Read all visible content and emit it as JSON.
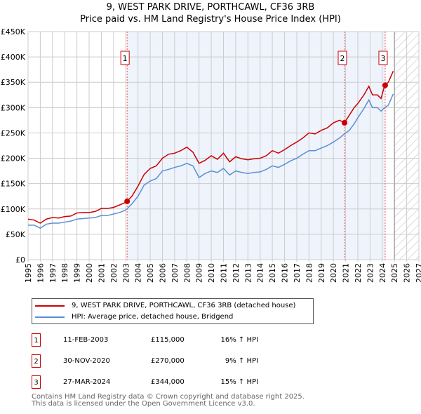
{
  "title": "9, WEST PARK DRIVE, PORTHCAWL, CF36 3RB",
  "subtitle": "Price paid vs. HM Land Registry's House Price Index (HPI)",
  "chart_data": {
    "type": "line",
    "title": "9, WEST PARK DRIVE, PORTHCAWL, CF36 3RB — Price paid vs. HM Land Registry's House Price Index (HPI)",
    "xlim": [
      1995,
      2027
    ],
    "ylim": [
      0,
      450000
    ],
    "x_ticks": [
      "1995",
      "1996",
      "1997",
      "1998",
      "1999",
      "2000",
      "2001",
      "2002",
      "2003",
      "2004",
      "2005",
      "2006",
      "2007",
      "2008",
      "2009",
      "2010",
      "2011",
      "2012",
      "2013",
      "2014",
      "2015",
      "2016",
      "2017",
      "2018",
      "2019",
      "2020",
      "2021",
      "2022",
      "2023",
      "2024",
      "2025",
      "2026",
      "2027"
    ],
    "y_ticks": [
      {
        "v": 0,
        "label": "£0"
      },
      {
        "v": 50000,
        "label": "£50K"
      },
      {
        "v": 100000,
        "label": "£100K"
      },
      {
        "v": 150000,
        "label": "£150K"
      },
      {
        "v": 200000,
        "label": "£200K"
      },
      {
        "v": 250000,
        "label": "£250K"
      },
      {
        "v": 300000,
        "label": "£300K"
      },
      {
        "v": 350000,
        "label": "£350K"
      },
      {
        "v": 400000,
        "label": "£400K"
      },
      {
        "v": 450000,
        "label": "£450K"
      }
    ],
    "grid": true,
    "shaded_range": [
      2003.11,
      2024.24
    ],
    "forecast_hatch_from": 2025.0,
    "x": [
      1995,
      1995.5,
      1996,
      1996.5,
      1997,
      1997.5,
      1998,
      1998.5,
      1999,
      1999.5,
      2000,
      2000.5,
      2001,
      2001.5,
      2002,
      2002.5,
      2003,
      2003.5,
      2004,
      2004.5,
      2005,
      2005.5,
      2006,
      2006.5,
      2007,
      2007.5,
      2008,
      2008.5,
      2009,
      2009.5,
      2010,
      2010.5,
      2011,
      2011.5,
      2012,
      2012.5,
      2013,
      2013.5,
      2014,
      2014.5,
      2015,
      2015.5,
      2016,
      2016.5,
      2017,
      2017.5,
      2018,
      2018.5,
      2019,
      2019.5,
      2020,
      2020.5,
      2020.9,
      2021.3,
      2021.7,
      2022,
      2022.5,
      2022.9,
      2023.2,
      2023.6,
      2023.9,
      2024.2,
      2024.5,
      2024.9
    ],
    "series": [
      {
        "name": "9, WEST PARK DRIVE, PORTHCAWL, CF36 3RB (detached house)",
        "color": "#cc0000",
        "values": [
          80000,
          78000,
          72000,
          80000,
          83000,
          82000,
          85000,
          86000,
          92000,
          93000,
          93000,
          95000,
          101000,
          101000,
          103000,
          108000,
          113000,
          125000,
          145000,
          168000,
          180000,
          185000,
          200000,
          208000,
          210000,
          215000,
          222000,
          212000,
          190000,
          196000,
          205000,
          198000,
          210000,
          193000,
          203000,
          199000,
          197000,
          199000,
          200000,
          205000,
          215000,
          210000,
          217000,
          225000,
          232000,
          240000,
          250000,
          248000,
          255000,
          260000,
          270000,
          275000,
          270000,
          285000,
          300000,
          308000,
          325000,
          342000,
          325000,
          325000,
          318000,
          344000,
          350000,
          372000
        ]
      },
      {
        "name": "HPI: Average price, detached house, Bridgend",
        "color": "#5b8fd4",
        "values": [
          68000,
          68000,
          62000,
          70000,
          72000,
          72000,
          74000,
          76000,
          80000,
          81000,
          82000,
          83000,
          87000,
          87000,
          90000,
          93000,
          98000,
          110000,
          125000,
          147000,
          155000,
          160000,
          175000,
          178000,
          182000,
          185000,
          190000,
          185000,
          162000,
          170000,
          175000,
          172000,
          180000,
          167000,
          175000,
          172000,
          170000,
          172000,
          173000,
          178000,
          185000,
          182000,
          188000,
          195000,
          200000,
          208000,
          215000,
          215000,
          220000,
          225000,
          232000,
          240000,
          248000,
          255000,
          268000,
          280000,
          298000,
          315000,
          300000,
          300000,
          293000,
          300000,
          305000,
          327000
        ]
      }
    ],
    "sales": [
      {
        "n": "1",
        "x": 2003.11,
        "y": 115000
      },
      {
        "n": "2",
        "x": 2020.91,
        "y": 270000
      },
      {
        "n": "3",
        "x": 2024.24,
        "y": 344000
      }
    ],
    "legend": "bottom"
  },
  "legend": {
    "property": "9, WEST PARK DRIVE, PORTHCAWL, CF36 3RB (detached house)",
    "hpi": "HPI: Average price, detached house, Bridgend"
  },
  "transactions": [
    {
      "n": "1",
      "date": "11-FEB-2003",
      "price": "£115,000",
      "hpi": "16% ↑ HPI"
    },
    {
      "n": "2",
      "date": "30-NOV-2020",
      "price": "£270,000",
      "hpi": "9% ↑ HPI"
    },
    {
      "n": "3",
      "date": "27-MAR-2024",
      "price": "£344,000",
      "hpi": "15% ↑ HPI"
    }
  ],
  "footer": {
    "line1": "Contains HM Land Registry data © Crown copyright and database right 2025.",
    "line2": "This data is licensed under the Open Government Licence v3.0."
  }
}
